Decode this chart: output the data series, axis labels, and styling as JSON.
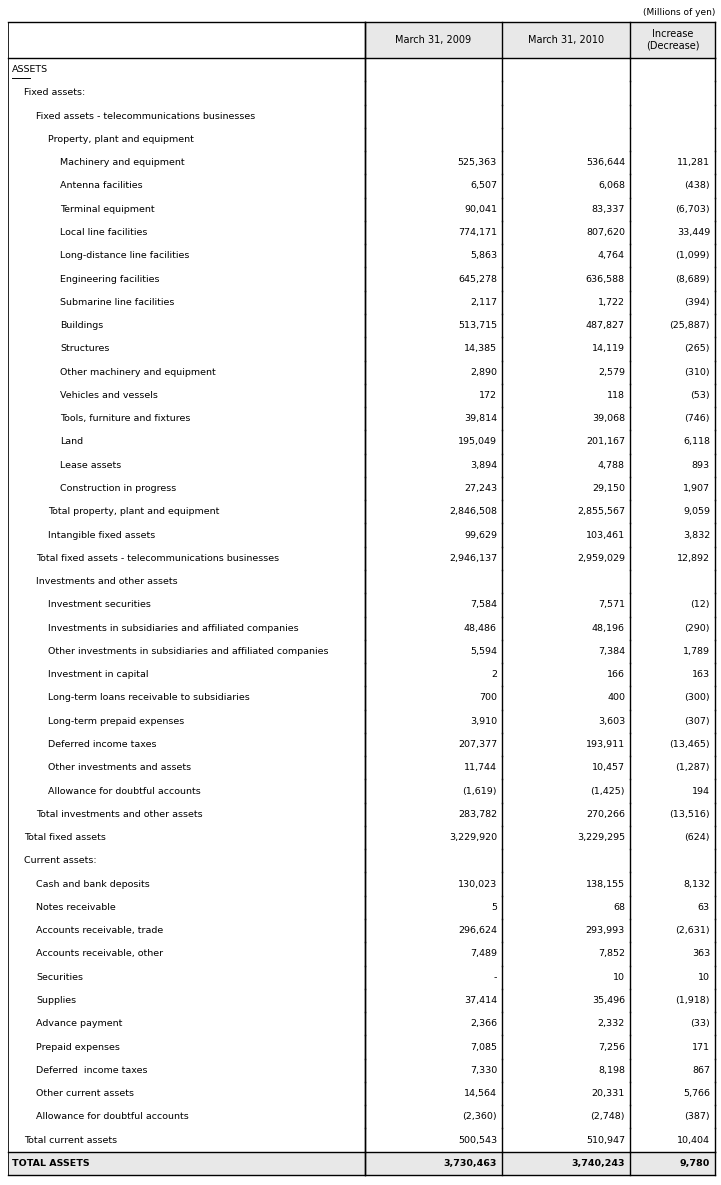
{
  "title_note": "(Millions of yen)",
  "col_headers": [
    "",
    "March 31, 2009",
    "March 31, 2010",
    "Increase\n(Decrease)"
  ],
  "rows": [
    {
      "label": "ASSETS",
      "indent": 0,
      "v1": "",
      "v2": "",
      "v3": "",
      "style": "underline",
      "bold": false
    },
    {
      "label": "Fixed assets:",
      "indent": 1,
      "v1": "",
      "v2": "",
      "v3": "",
      "style": "normal",
      "bold": false
    },
    {
      "label": "Fixed assets - telecommunications businesses",
      "indent": 2,
      "v1": "",
      "v2": "",
      "v3": "",
      "style": "normal",
      "bold": false
    },
    {
      "label": "Property, plant and equipment",
      "indent": 3,
      "v1": "",
      "v2": "",
      "v3": "",
      "style": "normal",
      "bold": false
    },
    {
      "label": "Machinery and equipment",
      "indent": 4,
      "v1": "525,363",
      "v2": "536,644",
      "v3": "11,281",
      "style": "normal",
      "bold": false
    },
    {
      "label": "Antenna facilities",
      "indent": 4,
      "v1": "6,507",
      "v2": "6,068",
      "v3": "(438)",
      "style": "normal",
      "bold": false
    },
    {
      "label": "Terminal equipment",
      "indent": 4,
      "v1": "90,041",
      "v2": "83,337",
      "v3": "(6,703)",
      "style": "normal",
      "bold": false
    },
    {
      "label": "Local line facilities",
      "indent": 4,
      "v1": "774,171",
      "v2": "807,620",
      "v3": "33,449",
      "style": "normal",
      "bold": false
    },
    {
      "label": "Long-distance line facilities",
      "indent": 4,
      "v1": "5,863",
      "v2": "4,764",
      "v3": "(1,099)",
      "style": "normal",
      "bold": false
    },
    {
      "label": "Engineering facilities",
      "indent": 4,
      "v1": "645,278",
      "v2": "636,588",
      "v3": "(8,689)",
      "style": "normal",
      "bold": false
    },
    {
      "label": "Submarine line facilities",
      "indent": 4,
      "v1": "2,117",
      "v2": "1,722",
      "v3": "(394)",
      "style": "normal",
      "bold": false
    },
    {
      "label": "Buildings",
      "indent": 4,
      "v1": "513,715",
      "v2": "487,827",
      "v3": "(25,887)",
      "style": "normal",
      "bold": false
    },
    {
      "label": "Structures",
      "indent": 4,
      "v1": "14,385",
      "v2": "14,119",
      "v3": "(265)",
      "style": "normal",
      "bold": false
    },
    {
      "label": "Other machinery and equipment",
      "indent": 4,
      "v1": "2,890",
      "v2": "2,579",
      "v3": "(310)",
      "style": "normal",
      "bold": false
    },
    {
      "label": "Vehicles and vessels",
      "indent": 4,
      "v1": "172",
      "v2": "118",
      "v3": "(53)",
      "style": "normal",
      "bold": false
    },
    {
      "label": "Tools, furniture and fixtures",
      "indent": 4,
      "v1": "39,814",
      "v2": "39,068",
      "v3": "(746)",
      "style": "normal",
      "bold": false
    },
    {
      "label": "Land",
      "indent": 4,
      "v1": "195,049",
      "v2": "201,167",
      "v3": "6,118",
      "style": "normal",
      "bold": false
    },
    {
      "label": "Lease assets",
      "indent": 4,
      "v1": "3,894",
      "v2": "4,788",
      "v3": "893",
      "style": "normal",
      "bold": false
    },
    {
      "label": "Construction in progress",
      "indent": 4,
      "v1": "27,243",
      "v2": "29,150",
      "v3": "1,907",
      "style": "normal",
      "bold": false
    },
    {
      "label": "Total property, plant and equipment",
      "indent": 3,
      "v1": "2,846,508",
      "v2": "2,855,567",
      "v3": "9,059",
      "style": "normal",
      "bold": false
    },
    {
      "label": "Intangible fixed assets",
      "indent": 3,
      "v1": "99,629",
      "v2": "103,461",
      "v3": "3,832",
      "style": "normal",
      "bold": false
    },
    {
      "label": "Total fixed assets - telecommunications businesses",
      "indent": 2,
      "v1": "2,946,137",
      "v2": "2,959,029",
      "v3": "12,892",
      "style": "normal",
      "bold": false
    },
    {
      "label": "Investments and other assets",
      "indent": 2,
      "v1": "",
      "v2": "",
      "v3": "",
      "style": "normal",
      "bold": false
    },
    {
      "label": "Investment securities",
      "indent": 3,
      "v1": "7,584",
      "v2": "7,571",
      "v3": "(12)",
      "style": "normal",
      "bold": false
    },
    {
      "label": "Investments in subsidiaries and affiliated companies",
      "indent": 3,
      "v1": "48,486",
      "v2": "48,196",
      "v3": "(290)",
      "style": "normal",
      "bold": false
    },
    {
      "label": "Other investments in subsidiaries and affiliated companies",
      "indent": 3,
      "v1": "5,594",
      "v2": "7,384",
      "v3": "1,789",
      "style": "normal",
      "bold": false
    },
    {
      "label": "Investment in capital",
      "indent": 3,
      "v1": "2",
      "v2": "166",
      "v3": "163",
      "style": "normal",
      "bold": false
    },
    {
      "label": "Long-term loans receivable to subsidiaries",
      "indent": 3,
      "v1": "700",
      "v2": "400",
      "v3": "(300)",
      "style": "normal",
      "bold": false
    },
    {
      "label": "Long-term prepaid expenses",
      "indent": 3,
      "v1": "3,910",
      "v2": "3,603",
      "v3": "(307)",
      "style": "normal",
      "bold": false
    },
    {
      "label": "Deferred income taxes",
      "indent": 3,
      "v1": "207,377",
      "v2": "193,911",
      "v3": "(13,465)",
      "style": "normal",
      "bold": false
    },
    {
      "label": "Other investments and assets",
      "indent": 3,
      "v1": "11,744",
      "v2": "10,457",
      "v3": "(1,287)",
      "style": "normal",
      "bold": false
    },
    {
      "label": "Allowance for doubtful accounts",
      "indent": 3,
      "v1": "(1,619)",
      "v2": "(1,425)",
      "v3": "194",
      "style": "normal",
      "bold": false
    },
    {
      "label": "Total investments and other assets",
      "indent": 2,
      "v1": "283,782",
      "v2": "270,266",
      "v3": "(13,516)",
      "style": "normal",
      "bold": false
    },
    {
      "label": "Total fixed assets",
      "indent": 1,
      "v1": "3,229,920",
      "v2": "3,229,295",
      "v3": "(624)",
      "style": "normal",
      "bold": false
    },
    {
      "label": "Current assets:",
      "indent": 1,
      "v1": "",
      "v2": "",
      "v3": "",
      "style": "normal",
      "bold": false
    },
    {
      "label": "Cash and bank deposits",
      "indent": 2,
      "v1": "130,023",
      "v2": "138,155",
      "v3": "8,132",
      "style": "normal",
      "bold": false
    },
    {
      "label": "Notes receivable",
      "indent": 2,
      "v1": "5",
      "v2": "68",
      "v3": "63",
      "style": "normal",
      "bold": false
    },
    {
      "label": "Accounts receivable, trade",
      "indent": 2,
      "v1": "296,624",
      "v2": "293,993",
      "v3": "(2,631)",
      "style": "normal",
      "bold": false
    },
    {
      "label": "Accounts receivable, other",
      "indent": 2,
      "v1": "7,489",
      "v2": "7,852",
      "v3": "363",
      "style": "normal",
      "bold": false
    },
    {
      "label": "Securities",
      "indent": 2,
      "v1": "-",
      "v2": "10",
      "v3": "10",
      "style": "normal",
      "bold": false
    },
    {
      "label": "Supplies",
      "indent": 2,
      "v1": "37,414",
      "v2": "35,496",
      "v3": "(1,918)",
      "style": "normal",
      "bold": false
    },
    {
      "label": "Advance payment",
      "indent": 2,
      "v1": "2,366",
      "v2": "2,332",
      "v3": "(33)",
      "style": "normal",
      "bold": false
    },
    {
      "label": "Prepaid expenses",
      "indent": 2,
      "v1": "7,085",
      "v2": "7,256",
      "v3": "171",
      "style": "normal",
      "bold": false
    },
    {
      "label": "Deferred  income taxes",
      "indent": 2,
      "v1": "7,330",
      "v2": "8,198",
      "v3": "867",
      "style": "normal",
      "bold": false
    },
    {
      "label": "Other current assets",
      "indent": 2,
      "v1": "14,564",
      "v2": "20,331",
      "v3": "5,766",
      "style": "normal",
      "bold": false
    },
    {
      "label": "Allowance for doubtful accounts",
      "indent": 2,
      "v1": "(2,360)",
      "v2": "(2,748)",
      "v3": "(387)",
      "style": "normal",
      "bold": false
    },
    {
      "label": "Total current assets",
      "indent": 1,
      "v1": "500,543",
      "v2": "510,947",
      "v3": "10,404",
      "style": "normal",
      "bold": false
    },
    {
      "label": "TOTAL ASSETS",
      "indent": 0,
      "v1": "3,730,463",
      "v2": "3,740,243",
      "v3": "9,780",
      "style": "total",
      "bold": true
    }
  ],
  "font_size": 6.8,
  "header_font_size": 7.0,
  "indent_size": 12,
  "note_fontsize": 6.5
}
